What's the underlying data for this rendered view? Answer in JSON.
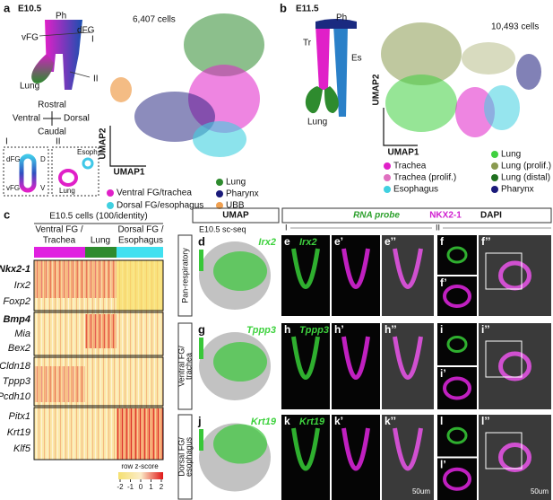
{
  "panel_a": {
    "label": "a",
    "stage": "E10.5",
    "schematic": {
      "ph": "Ph",
      "vfg": "vFG",
      "dfg": "dFG",
      "section_1": "I",
      "section_2": "II",
      "lung": "Lung"
    },
    "axes": {
      "rostral": "Rostral",
      "ventral": "Ventral",
      "dorsal": "Dorsal",
      "caudal": "Caudal"
    },
    "cell_count": "6,407 cells",
    "umap_y": "UMAP2",
    "umap_x": "UMAP1",
    "inset_1": {
      "label": "I",
      "dfg": "dFG",
      "d": "D",
      "vfg": "vFG",
      "v": "V"
    },
    "inset_2": {
      "label": "II",
      "esoph": "Esoph.",
      "lung": "Lung"
    },
    "legend": [
      "Ventral FG/trachea",
      "Dorsal FG/esophagus",
      "Lung",
      "Pharynx",
      "UBB"
    ]
  },
  "panel_b": {
    "label": "b",
    "stage": "E11.5",
    "schematic": {
      "ph": "Ph",
      "tr": "Tr",
      "es": "Es",
      "lung": "Lung"
    },
    "cell_count": "10,493 cells",
    "umap_y": "UMAP2",
    "umap_x": "UMAP1",
    "legend": [
      "Lung",
      "Trachea",
      "Lung (prolif.)",
      "Trachea (prolif.)",
      "Lung (distal)",
      "Esophagus",
      "Pharynx"
    ]
  },
  "panel_c": {
    "label": "c",
    "title": "E10.5 cells (100/identity)",
    "groups": [
      [
        "Ventral FG /",
        "Trachea"
      ],
      [
        "Lung"
      ],
      [
        "Dorsal FG /",
        "Esophagus"
      ]
    ],
    "genes": [
      "Nkx2-1",
      "Irx2",
      "Foxp2",
      "Bmp4",
      "Mia",
      "Bex2",
      "Cldn18",
      "Tppp3",
      "Pcdh10",
      "Pitx1",
      "Krt19",
      "Klf5"
    ],
    "scale_title": "row z-score",
    "scale_ticks": [
      -2,
      -1,
      0,
      1,
      2
    ]
  },
  "panel_d": {
    "header_umap": "UMAP",
    "header_probe": "RNA probe",
    "header_nkx": "NKX2-1",
    "header_dapi": "DAPI",
    "section_1": "I",
    "section_2": "II",
    "source": "E10.5 sc-seq",
    "rows": [
      {
        "name": [
          "Pan-respiratory"
        ],
        "gene": "Irx2",
        "letters": [
          "d",
          "e",
          "e’",
          "e’’",
          "f",
          "f’",
          "f’’"
        ]
      },
      {
        "name": [
          "Ventral FG/",
          "trachea"
        ],
        "gene": "Tppp3",
        "letters": [
          "g",
          "h",
          "h’",
          "h’’",
          "i",
          "i’",
          "i’’"
        ]
      },
      {
        "name": [
          "Dorsal FG/",
          "esophagus"
        ],
        "gene": "Krt19",
        "letters": [
          "j",
          "k",
          "k’",
          "k’’",
          "l",
          "l’",
          "l’’"
        ]
      }
    ],
    "scale_bar": "50um"
  }
}
